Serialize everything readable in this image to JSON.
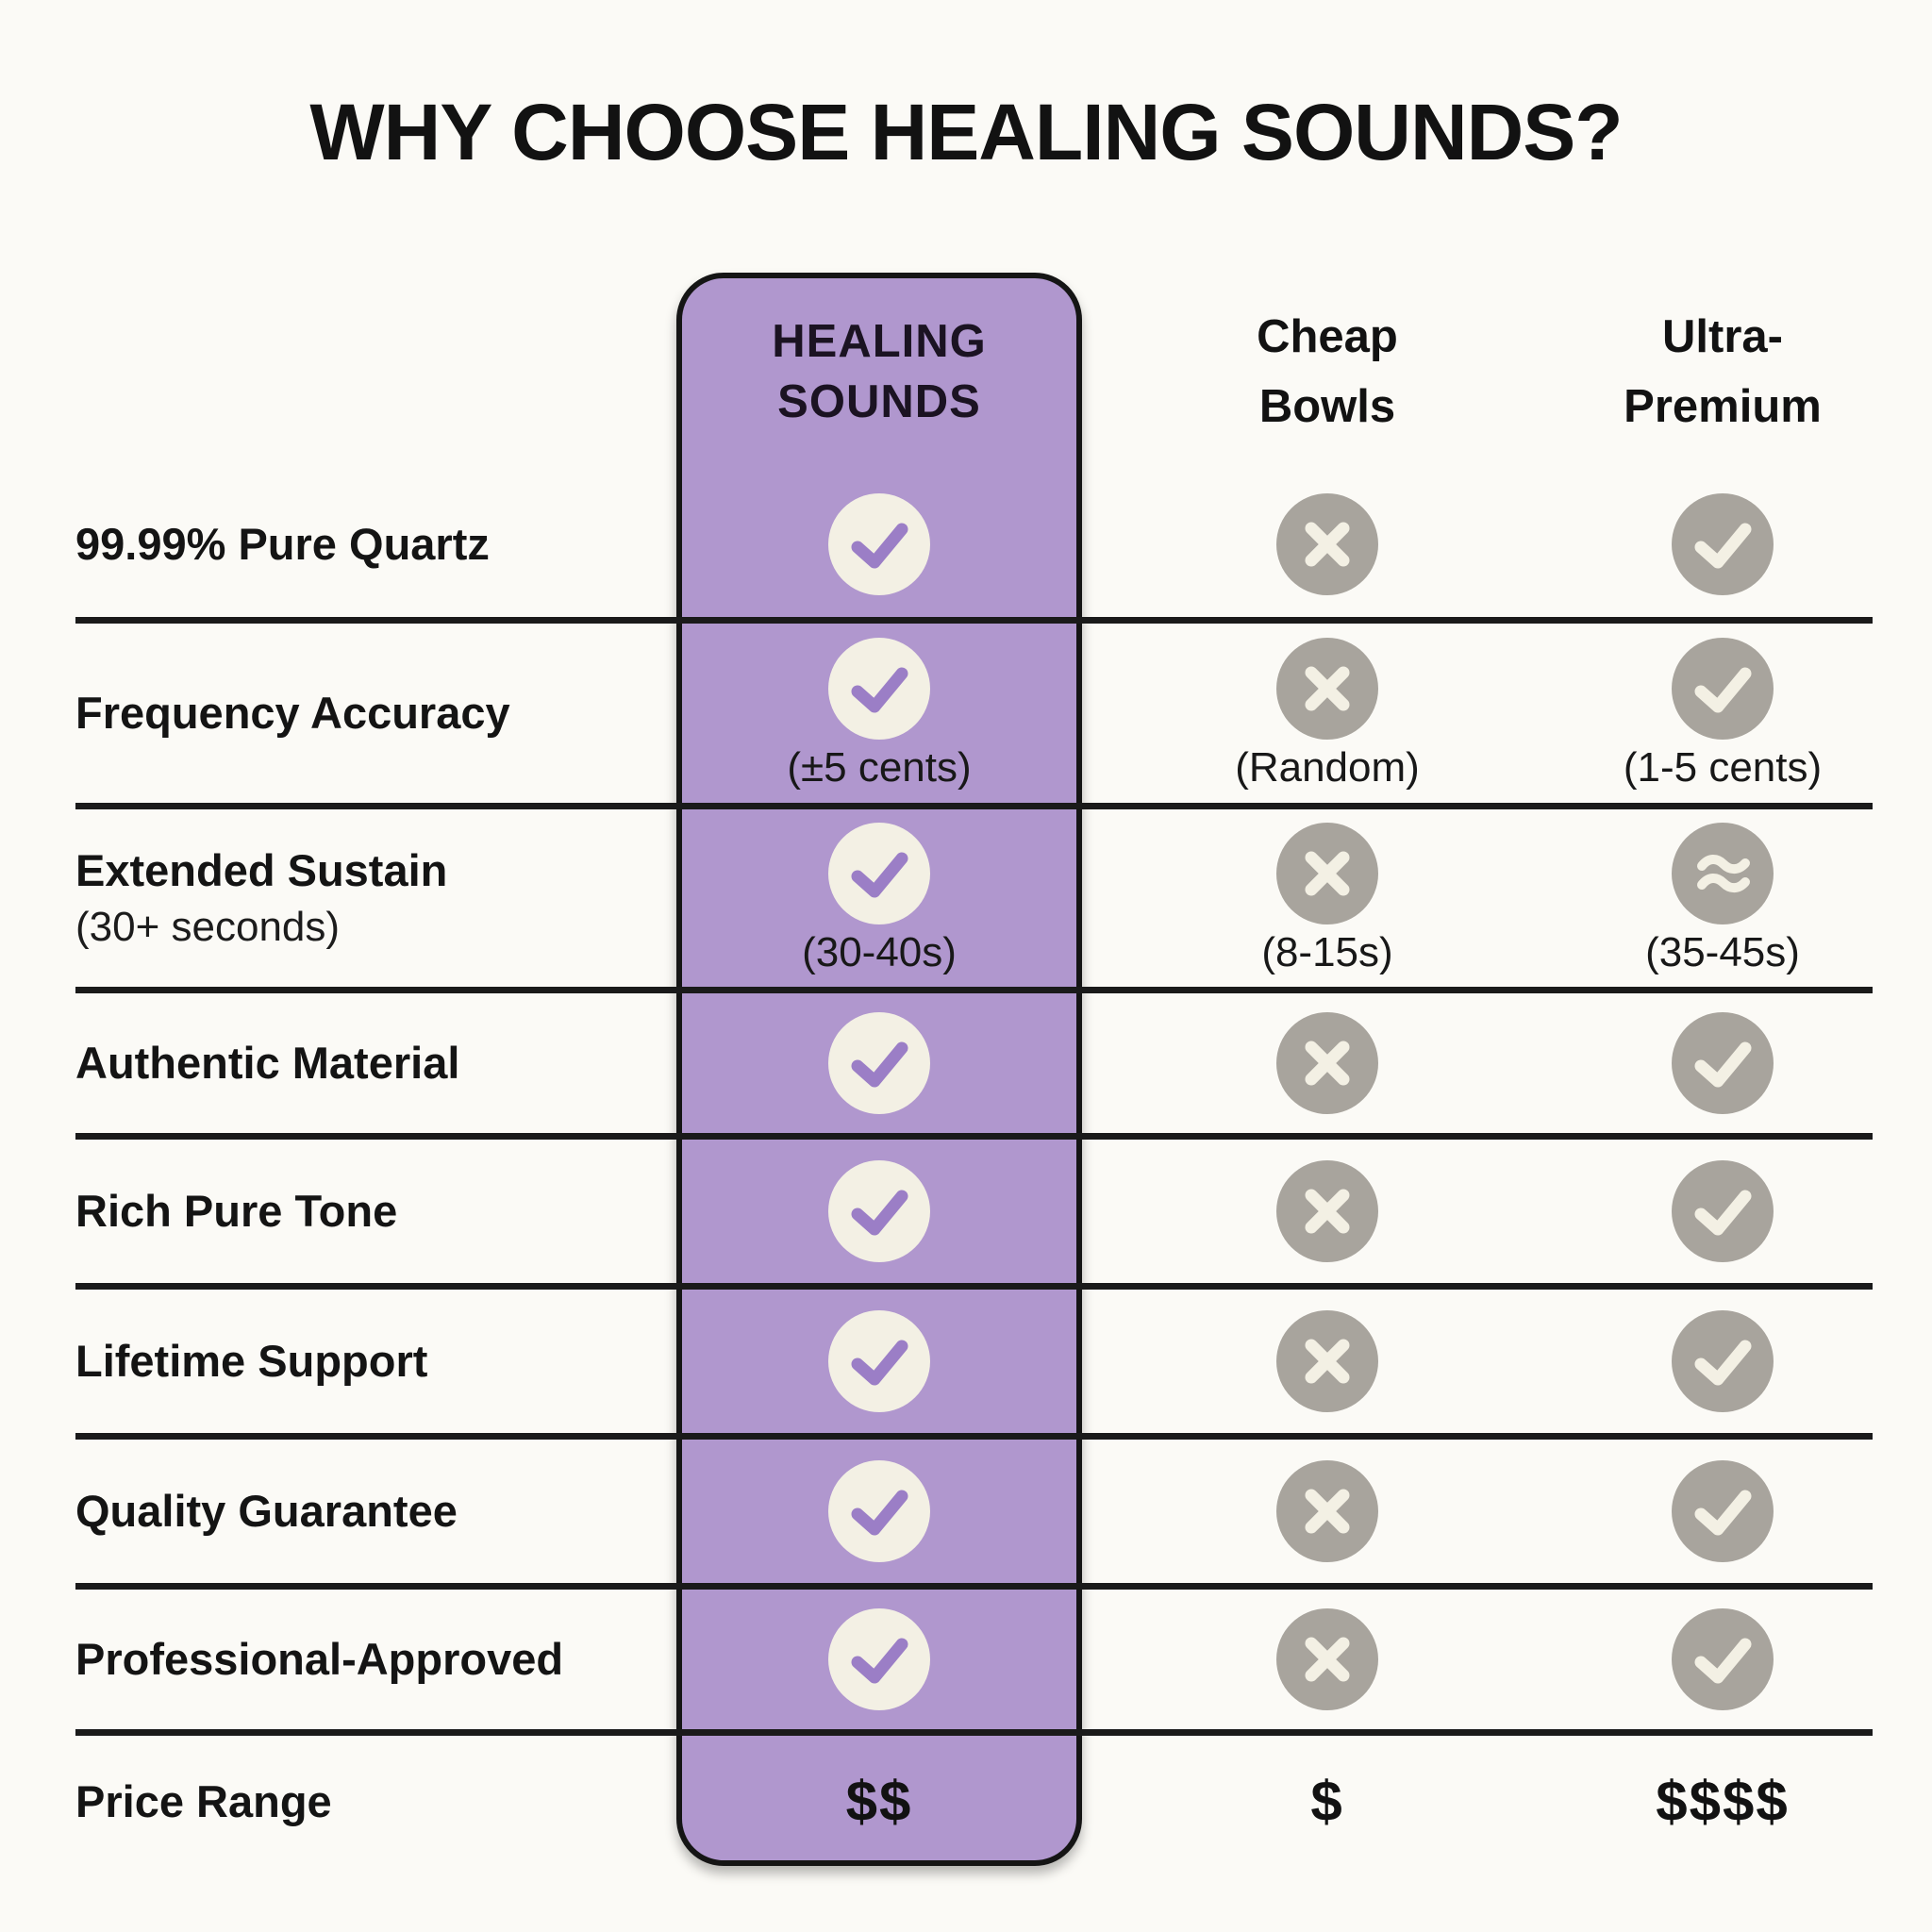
{
  "title": "WHY CHOOSE HEALING SOUNDS?",
  "columns": {
    "healing": {
      "line1": "HEALING",
      "line2": "SOUNDS"
    },
    "cheap": {
      "line1": "Cheap",
      "line2": "Bowls"
    },
    "ultra": {
      "line1": "Ultra-",
      "line2": "Premium"
    }
  },
  "rows": [
    {
      "label": "99.99% Pure Quartz",
      "sublabel": "",
      "healing": {
        "icon": "check-purple",
        "note": ""
      },
      "cheap": {
        "icon": "cross-gray",
        "note": ""
      },
      "ultra": {
        "icon": "check-gray",
        "note": ""
      }
    },
    {
      "label": "Frequency Accuracy",
      "sublabel": "",
      "healing": {
        "icon": "check-purple",
        "note": "(±5 cents)"
      },
      "cheap": {
        "icon": "cross-gray",
        "note": "(Random)"
      },
      "ultra": {
        "icon": "check-gray",
        "note": "(1-5 cents)"
      }
    },
    {
      "label": "Extended Sustain",
      "sublabel": "(30+ seconds)",
      "healing": {
        "icon": "check-purple",
        "note": "(30-40s)"
      },
      "cheap": {
        "icon": "cross-gray",
        "note": "(8-15s)"
      },
      "ultra": {
        "icon": "approx-gray",
        "note": "(35-45s)"
      }
    },
    {
      "label": "Authentic Material",
      "sublabel": "",
      "healing": {
        "icon": "check-purple",
        "note": ""
      },
      "cheap": {
        "icon": "cross-gray",
        "note": ""
      },
      "ultra": {
        "icon": "check-gray",
        "note": ""
      }
    },
    {
      "label": "Rich Pure Tone",
      "sublabel": "",
      "healing": {
        "icon": "check-purple",
        "note": ""
      },
      "cheap": {
        "icon": "cross-gray",
        "note": ""
      },
      "ultra": {
        "icon": "check-gray",
        "note": ""
      }
    },
    {
      "label": "Lifetime Support",
      "sublabel": "",
      "healing": {
        "icon": "check-purple",
        "note": ""
      },
      "cheap": {
        "icon": "cross-gray",
        "note": ""
      },
      "ultra": {
        "icon": "check-gray",
        "note": ""
      }
    },
    {
      "label": "Quality Guarantee",
      "sublabel": "",
      "healing": {
        "icon": "check-purple",
        "note": ""
      },
      "cheap": {
        "icon": "cross-gray",
        "note": ""
      },
      "ultra": {
        "icon": "check-gray",
        "note": ""
      }
    },
    {
      "label": "Professional-Approved",
      "sublabel": "",
      "healing": {
        "icon": "check-purple",
        "note": ""
      },
      "cheap": {
        "icon": "cross-gray",
        "note": ""
      },
      "ultra": {
        "icon": "check-gray",
        "note": ""
      }
    }
  ],
  "price": {
    "label": "Price Range",
    "healing": "$$",
    "cheap": "$",
    "ultra": "$$$$"
  },
  "colors": {
    "background": "#fbfaf6",
    "accent_purple": "#b097ce",
    "check_purple": "#9b7ec6",
    "cream": "#f3f0e4",
    "icon_gray": "#a8a49d",
    "line_black": "#1a1a1a",
    "text_black": "#141414"
  }
}
